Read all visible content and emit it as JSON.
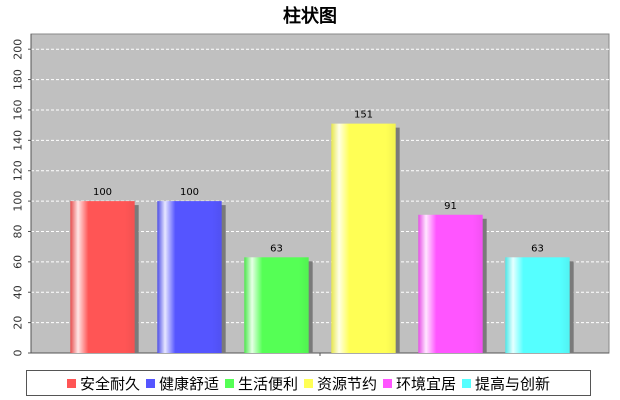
{
  "chart_data": {
    "type": "bar",
    "title": "柱状图",
    "categories": [
      "安全耐久",
      "健康舒适",
      "生活便利",
      "资源节约",
      "环境宜居",
      "提高与创新"
    ],
    "values": [
      100,
      100,
      63,
      151,
      91,
      63
    ],
    "data_labels": [
      "100",
      "100",
      "63",
      "151",
      "91",
      "63"
    ],
    "colors": [
      "#ff5555",
      "#5555ff",
      "#55ff55",
      "#ffff55",
      "#ff55ff",
      "#55ffff"
    ],
    "ylim": [
      0,
      210
    ],
    "yticks": [
      "0",
      "20",
      "40",
      "60",
      "80",
      "100",
      "120",
      "140",
      "160",
      "180",
      "200"
    ],
    "xlabel": "",
    "ylabel": "",
    "grid": true,
    "legend_position": "bottom",
    "plot_background": "#c0c0c0"
  }
}
